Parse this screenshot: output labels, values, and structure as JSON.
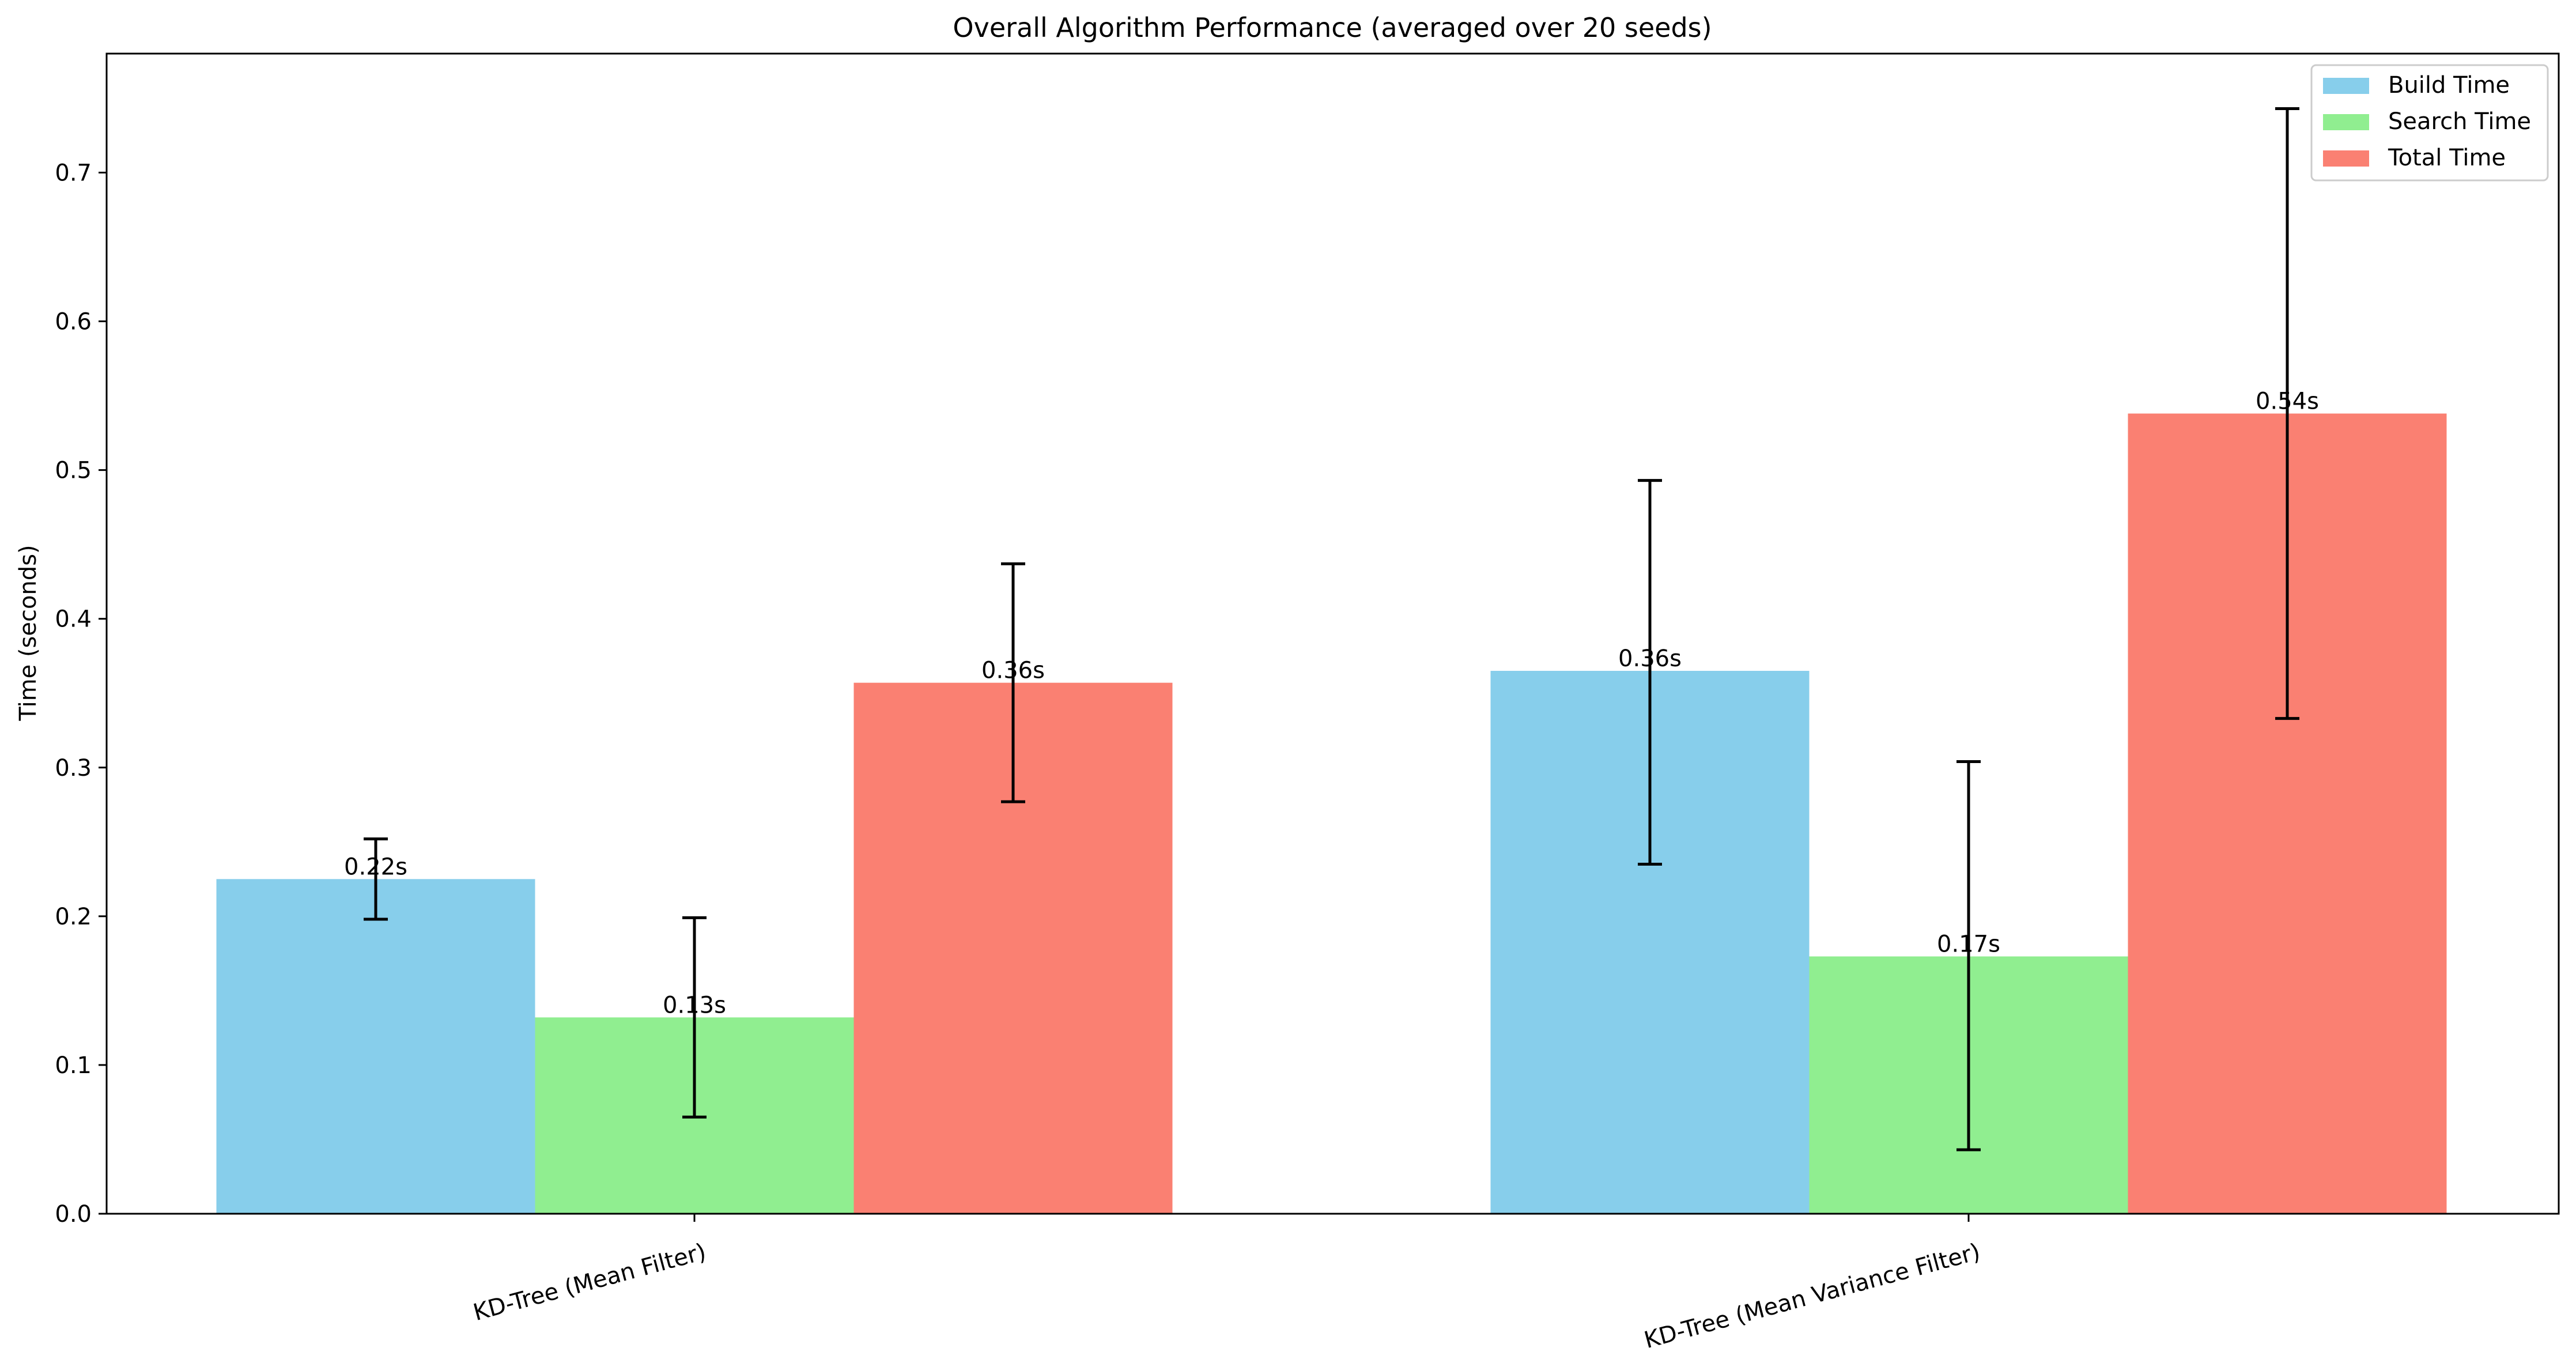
{
  "chart_data": {
    "type": "bar",
    "title": "Overall Algorithm Performance (averaged over 20 seeds)",
    "xlabel": "",
    "ylabel": "Time (seconds)",
    "ylim": [
      0,
      0.78
    ],
    "yticks": [
      0.0,
      0.1,
      0.2,
      0.3,
      0.4,
      0.5,
      0.6,
      0.7
    ],
    "ytick_labels": [
      "0.0",
      "0.1",
      "0.2",
      "0.3",
      "0.4",
      "0.5",
      "0.6",
      "0.7"
    ],
    "categories": [
      "KD-Tree (Mean Filter)",
      "KD-Tree (Mean Variance Filter)"
    ],
    "category_label_rotation_deg": -15,
    "grid": false,
    "legend_position": "upper-right",
    "series": [
      {
        "name": "Build Time",
        "color": "#87CEEB",
        "values": [
          0.225,
          0.365
        ],
        "error_low": [
          0.198,
          0.235
        ],
        "error_high": [
          0.252,
          0.493
        ],
        "labels": [
          "0.22s",
          "0.36s"
        ]
      },
      {
        "name": "Search Time",
        "color": "#90EE90",
        "values": [
          0.132,
          0.173
        ],
        "error_low": [
          0.065,
          0.043
        ],
        "error_high": [
          0.199,
          0.304
        ],
        "labels": [
          "0.13s",
          "0.17s"
        ]
      },
      {
        "name": "Total Time",
        "color": "#FA8072",
        "values": [
          0.357,
          0.538
        ],
        "error_low": [
          0.277,
          0.333
        ],
        "error_high": [
          0.437,
          0.743
        ],
        "labels": [
          "0.36s",
          "0.54s"
        ]
      }
    ]
  }
}
